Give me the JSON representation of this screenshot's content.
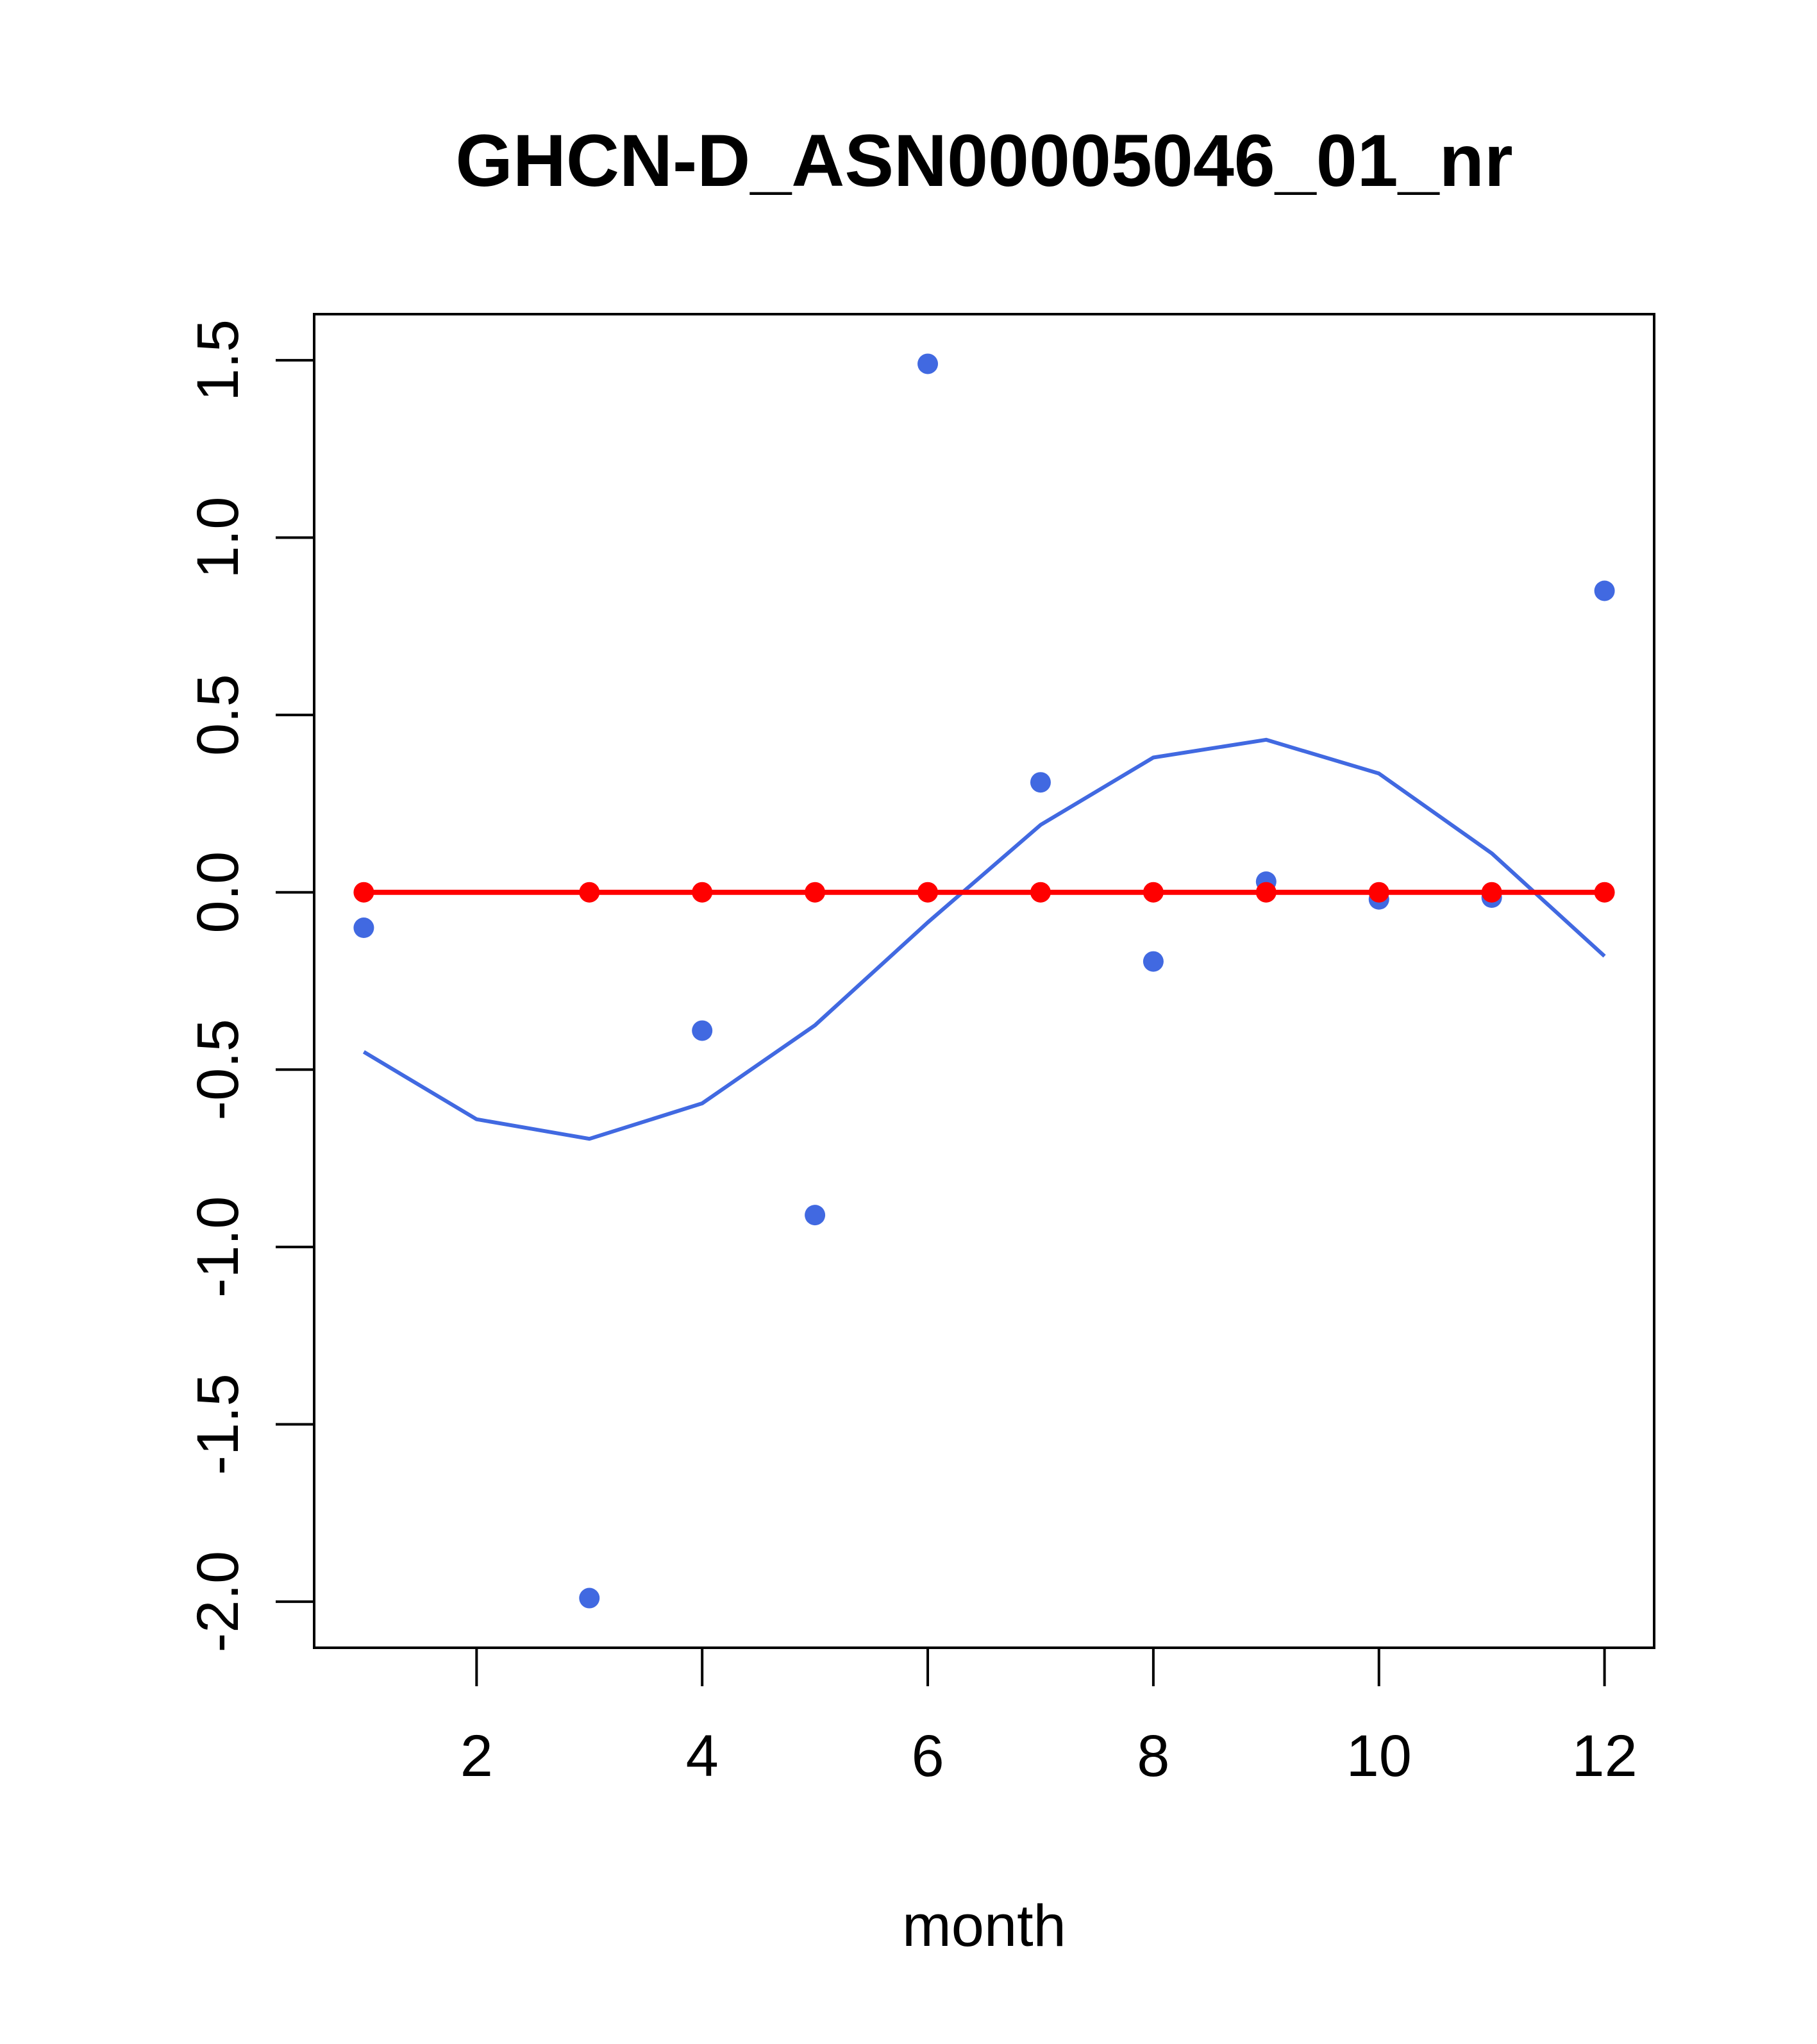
{
  "chart_data": {
    "type": "scatter",
    "title": "GHCN-D_ASN00005046_01_nr",
    "xlabel": "month",
    "ylabel": "",
    "xlim": [
      0.56,
      12.44
    ],
    "ylim": [
      -2.13,
      1.63
    ],
    "x_ticks": [
      {
        "value": 2,
        "label": "2"
      },
      {
        "value": 4,
        "label": "4"
      },
      {
        "value": 6,
        "label": "6"
      },
      {
        "value": 8,
        "label": "8"
      },
      {
        "value": 10,
        "label": "10"
      },
      {
        "value": 12,
        "label": "12"
      }
    ],
    "y_ticks": [
      {
        "value": -2.0,
        "label": "-2.0"
      },
      {
        "value": -1.5,
        "label": "-1.5"
      },
      {
        "value": -1.0,
        "label": "-1.0"
      },
      {
        "value": -0.5,
        "label": "-0.5"
      },
      {
        "value": 0.0,
        "label": "0.0"
      },
      {
        "value": 0.5,
        "label": "0.5"
      },
      {
        "value": 1.0,
        "label": "1.0"
      },
      {
        "value": 1.5,
        "label": "1.5"
      }
    ],
    "grid": false,
    "legend": "none",
    "series": [
      {
        "kind": "points",
        "color": "#4169E1",
        "x": [
          1,
          3,
          4,
          5,
          6,
          7,
          8,
          9,
          10,
          11,
          12
        ],
        "y": [
          -0.1,
          -1.99,
          -0.39,
          -0.91,
          1.49,
          0.31,
          -0.195,
          0.03,
          -0.02,
          -0.015,
          0.85
        ]
      },
      {
        "kind": "line",
        "color": "#4169E1",
        "x": [
          1,
          2,
          3,
          4,
          5,
          6,
          7,
          8,
          9,
          10,
          11,
          12
        ],
        "y": [
          -0.45,
          -0.64,
          -0.695,
          -0.595,
          -0.375,
          -0.085,
          0.19,
          0.38,
          0.43,
          0.335,
          0.11,
          -0.18
        ]
      },
      {
        "kind": "line+points",
        "color": "#FF0000",
        "x": [
          1,
          3,
          4,
          5,
          6,
          7,
          8,
          9,
          10,
          11,
          12
        ],
        "y": [
          0,
          0,
          0,
          0,
          0,
          0,
          0,
          0,
          0,
          0,
          0
        ]
      }
    ]
  }
}
